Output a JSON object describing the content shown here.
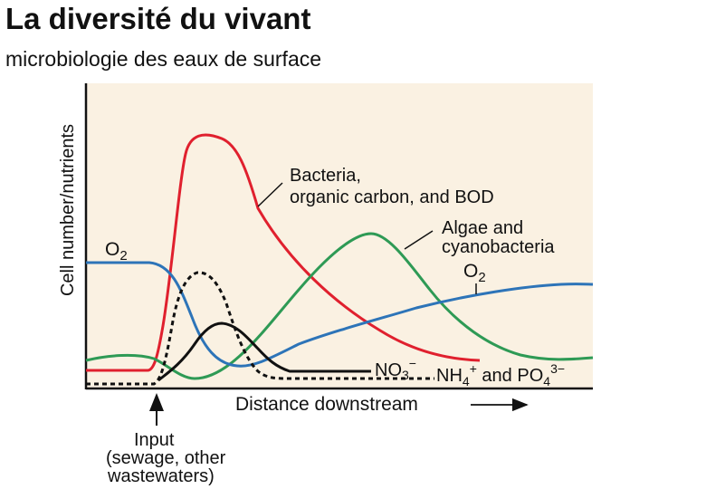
{
  "slide": {
    "title": "La diversité du vivant",
    "subtitle": "microbiologie des eaux de surface"
  },
  "figure": {
    "y_axis_label": "Cell number/nutrients",
    "x_axis_label": "Distance downstream",
    "input_label_lines": [
      "Input",
      "(sewage, other",
      "wastewaters)"
    ],
    "o2_left": {
      "base": "O",
      "sub": "2"
    },
    "o2_right": {
      "base": "O",
      "sub": "2"
    },
    "bacteria_label_lines": [
      "Bacteria,",
      "organic carbon, and BOD"
    ],
    "algae_label_lines": [
      "Algae and",
      "cyanobacteria"
    ],
    "no3_label": {
      "base": "NO",
      "sub": "3",
      "sup": "−"
    },
    "nh4_po4_label": {
      "nh": "NH",
      "nh_sub": "4",
      "nh_sup": "+",
      "and": " and PO",
      "po_sub": "4",
      "po_sup": "3−"
    },
    "colors": {
      "background": "#FAF1E2",
      "bacteria": "#E0202E",
      "algae": "#2E9A55",
      "oxygen": "#2D74B8",
      "nitrate": "#111111",
      "ammonium_phosphate": "#111111"
    }
  }
}
